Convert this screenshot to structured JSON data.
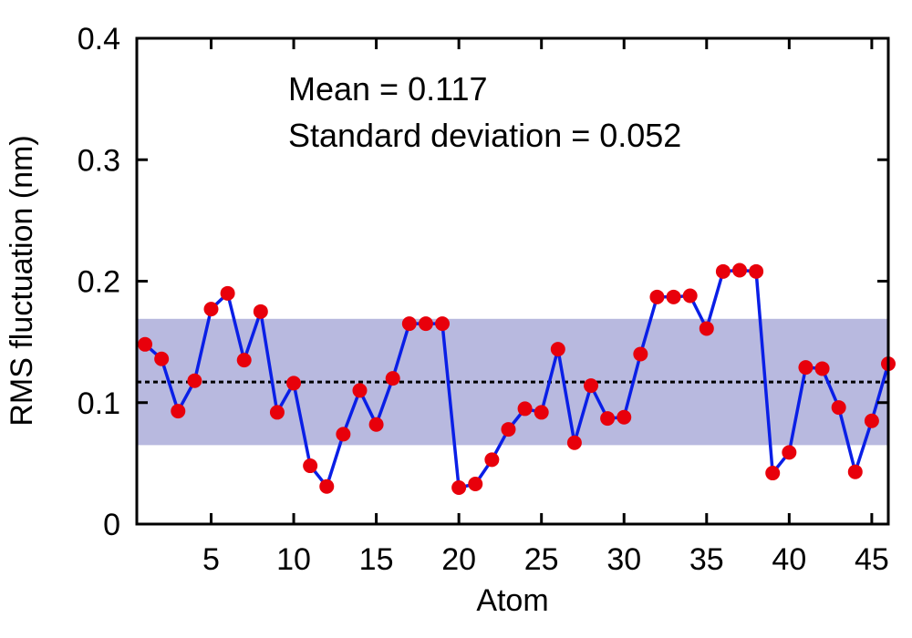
{
  "chart_data": {
    "type": "line",
    "xlabel": "Atom",
    "ylabel": "RMS fluctuation (nm)",
    "xlim": [
      0.5,
      46
    ],
    "ylim": [
      0,
      0.4
    ],
    "x_ticks": [
      5,
      10,
      15,
      20,
      25,
      30,
      35,
      40,
      45
    ],
    "y_ticks": [
      0,
      0.1,
      0.2,
      0.3,
      0.4
    ],
    "y_tick_labels": [
      "0",
      "0.1",
      "0.2",
      "0.3",
      "0.4"
    ],
    "grid": false,
    "annotations": [
      "Mean = 0.117",
      "Standard deviation = 0.052"
    ],
    "mean": 0.117,
    "std_dev": 0.052,
    "band_range": [
      0.065,
      0.169
    ],
    "series": [
      {
        "x": [
          1,
          2,
          3,
          4,
          5,
          6,
          7,
          8,
          9,
          10,
          11,
          12,
          13,
          14,
          15,
          16,
          17,
          18,
          19,
          20,
          21,
          22,
          23,
          24,
          25,
          26,
          27,
          28,
          29,
          30,
          31,
          32,
          33,
          34,
          35,
          36,
          37,
          38,
          39,
          40,
          41,
          42,
          43,
          44,
          45,
          46
        ],
        "values": [
          0.148,
          0.136,
          0.093,
          0.118,
          0.177,
          0.19,
          0.135,
          0.175,
          0.092,
          0.116,
          0.048,
          0.031,
          0.074,
          0.11,
          0.082,
          0.12,
          0.165,
          0.165,
          0.165,
          0.03,
          0.033,
          0.053,
          0.078,
          0.095,
          0.092,
          0.144,
          0.067,
          0.114,
          0.087,
          0.088,
          0.14,
          0.187,
          0.187,
          0.188,
          0.161,
          0.208,
          0.209,
          0.208,
          0.042,
          0.059,
          0.129,
          0.128,
          0.096,
          0.043,
          0.085,
          0.132
        ]
      }
    ],
    "colors": {
      "line": "#0a1fe6",
      "points": "#e8000b",
      "band": "#b8b9df",
      "mean_line": "#000000"
    }
  }
}
